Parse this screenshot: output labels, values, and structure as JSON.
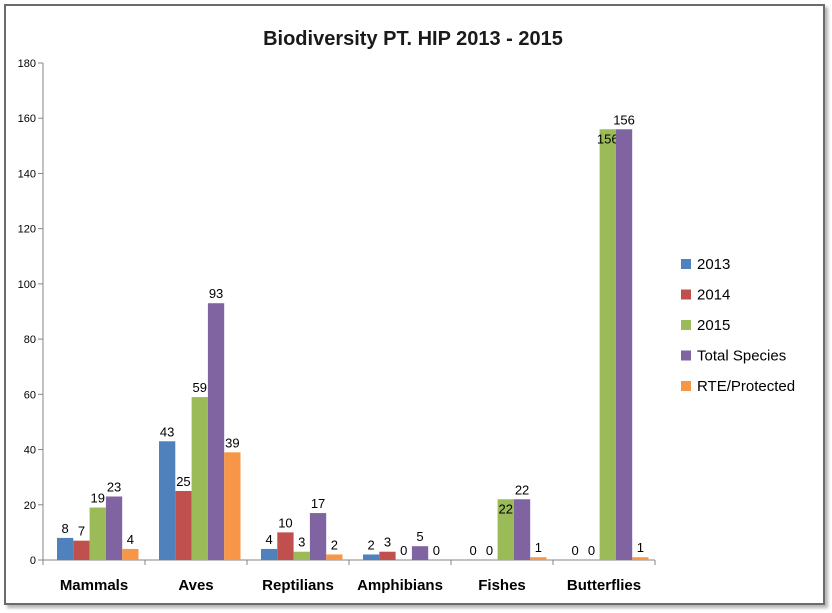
{
  "chart_data": {
    "type": "bar",
    "title": "Biodiversity PT. HIP 2013 - 2015",
    "categories": [
      "Mammals",
      "Aves",
      "Reptilians",
      "Amphibians",
      "Fishes",
      "Butterflies"
    ],
    "series": [
      {
        "name": "2013",
        "color": "#4f81bd",
        "values": [
          8,
          43,
          4,
          2,
          0,
          0
        ]
      },
      {
        "name": "2014",
        "color": "#c0504d",
        "values": [
          7,
          25,
          10,
          3,
          0,
          0
        ]
      },
      {
        "name": "2015",
        "color": "#9bbb59",
        "values": [
          19,
          59,
          3,
          0,
          22,
          156
        ]
      },
      {
        "name": "Total Species",
        "color": "#8064a2",
        "values": [
          23,
          93,
          17,
          5,
          22,
          156
        ]
      },
      {
        "name": "RTE/Protected",
        "color": "#f79646",
        "values": [
          4,
          39,
          2,
          0,
          1,
          1
        ]
      }
    ],
    "data_labels": [
      [
        "8",
        "7",
        "19",
        "23",
        "4"
      ],
      [
        "43",
        "25",
        "59",
        "93",
        "39"
      ],
      [
        "4",
        "10",
        "3",
        "17",
        "2"
      ],
      [
        "2",
        "3",
        "0",
        "5",
        "0"
      ],
      [
        "0",
        "0",
        "22",
        "22",
        "1"
      ],
      [
        "0",
        "0",
        "156",
        "156",
        "1"
      ]
    ],
    "ylim": [
      0,
      180
    ],
    "yticks": [
      0,
      20,
      40,
      60,
      80,
      100,
      120,
      140,
      160,
      180
    ],
    "grid": false,
    "legend": "right"
  }
}
